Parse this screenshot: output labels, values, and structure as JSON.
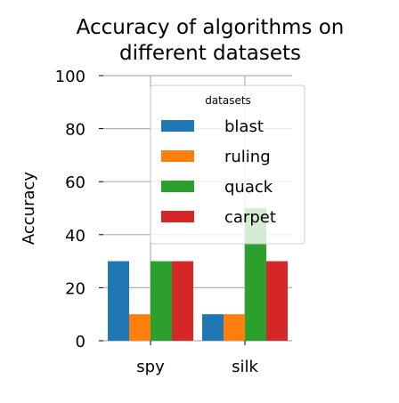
{
  "chart_data": {
    "type": "bar",
    "title_lines": [
      "Accuracy of algorithms on",
      "different datasets"
    ],
    "xlabel": "",
    "ylabel": "Accuracy",
    "categories": [
      "spy",
      "silk"
    ],
    "series": [
      {
        "name": "blast",
        "values": [
          30,
          10
        ],
        "color": "#1f77b4"
      },
      {
        "name": "ruling",
        "values": [
          10,
          10
        ],
        "color": "#ff7f0e"
      },
      {
        "name": "quack",
        "values": [
          30,
          50
        ],
        "color": "#2ca02c"
      },
      {
        "name": "carpet",
        "values": [
          30,
          30
        ],
        "color": "#d62728"
      }
    ],
    "ylim": [
      0,
      100
    ],
    "yticks": [
      0,
      20,
      40,
      60,
      80,
      100
    ],
    "grid": true,
    "legend": {
      "title": "datasets",
      "placement": "top-right"
    }
  }
}
